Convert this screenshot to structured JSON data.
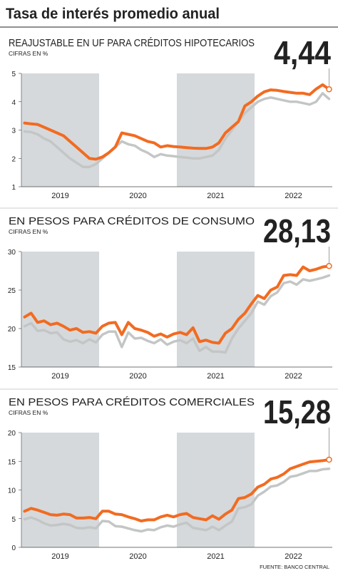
{
  "title": "Tasa de interés promedio anual",
  "source": "FUENTE: BANCO CENTRAL",
  "chart_data": [
    {
      "type": "line",
      "title": "REAJUSTABLE EN UF PARA CRÉDITOS HIPOTECARIOS",
      "subtitle": "CIFRAS EN %",
      "highlight": {
        "value": 4.44,
        "label": "4,44"
      },
      "categories": [
        null,
        null,
        null,
        null,
        null,
        null,
        "2019",
        null,
        null,
        null,
        null,
        null,
        null,
        null,
        null,
        null,
        null,
        null,
        "2020",
        null,
        null,
        null,
        null,
        null,
        null,
        null,
        null,
        null,
        null,
        null,
        "2021",
        null,
        null,
        null,
        null,
        null,
        null,
        null,
        null,
        null,
        null,
        null,
        "2022",
        null,
        null,
        null,
        null,
        null
      ],
      "series": [
        {
          "color": "#f26b21",
          "values": [
            3.25,
            3.22,
            3.2,
            3.1,
            3.0,
            2.9,
            2.8,
            2.6,
            2.4,
            2.2,
            2.0,
            1.97,
            2.05,
            2.2,
            2.4,
            2.9,
            2.85,
            2.8,
            2.7,
            2.6,
            2.55,
            2.4,
            2.45,
            2.42,
            2.4,
            2.38,
            2.36,
            2.35,
            2.35,
            2.4,
            2.55,
            2.9,
            3.1,
            3.3,
            3.85,
            4.0,
            4.2,
            4.35,
            4.42,
            4.4,
            4.36,
            4.33,
            4.3,
            4.3,
            4.25,
            4.45,
            4.6,
            4.44
          ]
        },
        {
          "color": "#c4c6c6",
          "values": [
            2.95,
            2.93,
            2.85,
            2.7,
            2.6,
            2.4,
            2.2,
            2.0,
            1.85,
            1.7,
            1.7,
            1.8,
            2.0,
            2.2,
            2.4,
            2.6,
            2.5,
            2.45,
            2.3,
            2.2,
            2.05,
            2.15,
            2.1,
            2.08,
            2.05,
            2.03,
            2.0,
            2.0,
            2.05,
            2.1,
            2.3,
            2.7,
            3.0,
            3.3,
            3.6,
            3.8,
            4.0,
            4.1,
            4.15,
            4.1,
            4.05,
            4.0,
            4.0,
            3.95,
            3.9,
            4.0,
            4.3,
            4.1
          ]
        }
      ],
      "ylim": [
        1,
        5
      ],
      "yticks": [
        1,
        2,
        3,
        4,
        5
      ]
    },
    {
      "type": "line",
      "title": "EN PESOS PARA CRÉDITOS DE CONSUMO",
      "subtitle": "CIFRAS EN %",
      "highlight": {
        "value": 28.13,
        "label": "28,13"
      },
      "categories": [
        null,
        null,
        null,
        null,
        null,
        null,
        "2019",
        null,
        null,
        null,
        null,
        null,
        null,
        null,
        null,
        null,
        null,
        null,
        "2020",
        null,
        null,
        null,
        null,
        null,
        null,
        null,
        null,
        null,
        null,
        null,
        "2021",
        null,
        null,
        null,
        null,
        null,
        null,
        null,
        null,
        null,
        null,
        null,
        "2022",
        null,
        null,
        null,
        null,
        null
      ],
      "series": [
        {
          "color": "#f26b21",
          "values": [
            21.5,
            22,
            20.8,
            21,
            20.5,
            20.7,
            20.3,
            19.8,
            20,
            19.5,
            19.6,
            19.4,
            20.3,
            20.7,
            20.8,
            19.2,
            20.8,
            20,
            19.8,
            19.5,
            19,
            19.3,
            18.9,
            19.3,
            19.5,
            19.2,
            20.1,
            18.3,
            18.5,
            18.2,
            18.1,
            19.4,
            20,
            21.2,
            22,
            23.2,
            24.3,
            23.9,
            25,
            25.4,
            26.9,
            27,
            26.9,
            28,
            27.5,
            27.7,
            28,
            28.13
          ]
        },
        {
          "color": "#c4c6c6",
          "values": [
            20.3,
            20.7,
            19.7,
            19.8,
            19.4,
            19.5,
            18.6,
            18.3,
            18.5,
            18.1,
            18.6,
            18.2,
            19.2,
            19.6,
            19.6,
            17.6,
            19.5,
            18.7,
            18.8,
            18.4,
            18.1,
            18.6,
            17.9,
            18.3,
            18.5,
            18.1,
            18.7,
            17.1,
            17.6,
            17,
            17,
            16.9,
            18.7,
            20,
            21,
            22,
            23.5,
            23.1,
            24.2,
            24.7,
            25.9,
            26.1,
            25.7,
            26.4,
            26.2,
            26.4,
            26.6,
            26.9
          ]
        }
      ],
      "ylim": [
        15,
        30
      ],
      "yticks": [
        15,
        20,
        25,
        30
      ]
    },
    {
      "type": "line",
      "title": "EN PESOS PARA CRÉDITOS COMERCIALES",
      "subtitle": "CIFRAS EN %",
      "highlight": {
        "value": 15.28,
        "label": "15,28"
      },
      "categories": [
        null,
        null,
        null,
        null,
        null,
        null,
        "2019",
        null,
        null,
        null,
        null,
        null,
        null,
        null,
        null,
        null,
        null,
        null,
        "2020",
        null,
        null,
        null,
        null,
        null,
        null,
        null,
        null,
        null,
        null,
        null,
        "2021",
        null,
        null,
        null,
        null,
        null,
        null,
        null,
        null,
        null,
        null,
        null,
        "2022",
        null,
        null,
        null,
        null,
        null
      ],
      "series": [
        {
          "color": "#f26b21",
          "values": [
            6.3,
            6.8,
            6.5,
            6.1,
            5.7,
            5.6,
            5.8,
            5.7,
            5.1,
            5.1,
            5.2,
            5.0,
            6.3,
            6.3,
            5.8,
            5.7,
            5.3,
            5.0,
            4.6,
            4.8,
            4.8,
            5.3,
            5.6,
            5.3,
            5.7,
            5.9,
            5.2,
            5.0,
            4.8,
            5.5,
            4.9,
            5.8,
            6.5,
            8.5,
            8.7,
            9.3,
            10.5,
            11,
            11.9,
            12.2,
            12.8,
            13.7,
            14.1,
            14.5,
            14.9,
            15,
            15.1,
            15.28
          ]
        },
        {
          "color": "#c4c6c6",
          "values": [
            4.9,
            5.2,
            4.8,
            4.2,
            3.8,
            3.9,
            4.1,
            3.9,
            3.4,
            3.3,
            3.5,
            3.3,
            4.6,
            4.5,
            3.7,
            3.6,
            3.3,
            3.0,
            2.8,
            3.1,
            3.0,
            3.5,
            3.8,
            3.6,
            4.0,
            4.3,
            3.4,
            3.2,
            3.0,
            3.6,
            3.0,
            3.8,
            4.5,
            6.8,
            7,
            7.5,
            9,
            9.7,
            10.6,
            10.8,
            11.4,
            12.3,
            12.5,
            12.9,
            13.3,
            13.3,
            13.6,
            13.7
          ]
        }
      ],
      "ylim": [
        0,
        20
      ],
      "yticks": [
        0,
        5,
        10,
        15,
        20
      ]
    }
  ]
}
